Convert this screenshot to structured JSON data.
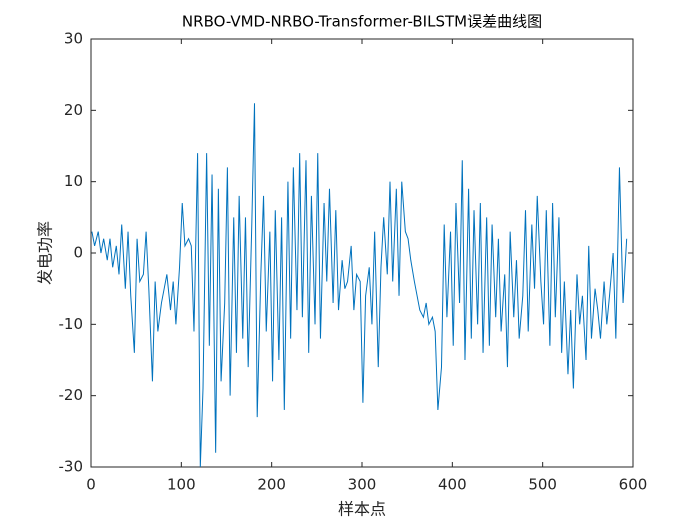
{
  "chart_data": {
    "type": "line",
    "title": "NRBO-VMD-NRBO-Transformer-BILSTM误差曲线图",
    "x_label": "样本点",
    "y_label": "发电功率",
    "color": "#0072bd",
    "x": [
      1,
      4,
      8,
      11,
      14,
      18,
      21,
      24,
      28,
      31,
      34,
      38,
      41,
      44,
      48,
      51,
      54,
      58,
      61,
      64,
      68,
      71,
      74,
      78,
      81,
      84,
      88,
      91,
      94,
      98,
      101,
      104,
      108,
      111,
      114,
      118,
      121,
      124,
      128,
      131,
      134,
      138,
      141,
      144,
      148,
      151,
      154,
      158,
      161,
      164,
      168,
      171,
      174,
      178,
      181,
      184,
      188,
      191,
      194,
      198,
      201,
      204,
      208,
      211,
      214,
      218,
      221,
      224,
      228,
      231,
      234,
      238,
      241,
      244,
      248,
      251,
      254,
      258,
      261,
      264,
      268,
      271,
      274,
      278,
      281,
      284,
      288,
      291,
      294,
      298,
      301,
      304,
      308,
      311,
      314,
      318,
      321,
      324,
      328,
      331,
      334,
      338,
      341,
      344,
      348,
      351,
      354,
      358,
      361,
      364,
      368,
      371,
      374,
      378,
      381,
      384,
      388,
      391,
      394,
      398,
      401,
      404,
      408,
      411,
      414,
      418,
      421,
      424,
      428,
      431,
      434,
      438,
      441,
      444,
      448,
      451,
      454,
      458,
      461,
      464,
      468,
      471,
      474,
      478,
      481,
      484,
      488,
      491,
      494,
      498,
      501,
      504,
      508,
      511,
      514,
      518,
      521,
      524,
      528,
      531,
      534,
      538,
      541,
      544,
      548,
      551,
      554,
      558,
      561,
      564,
      568,
      571,
      574,
      578,
      581,
      585,
      589,
      593
    ],
    "values": [
      3,
      1,
      3,
      0,
      2,
      -1,
      2,
      -2,
      1,
      -3,
      4,
      -5,
      3,
      -6,
      -14,
      2,
      -4,
      -3,
      3,
      -5,
      -18,
      -4,
      -11,
      -7,
      -5,
      -3,
      -8,
      -4,
      -10,
      -2,
      7,
      1,
      2,
      1,
      -11,
      14,
      -30,
      -19,
      14,
      -13,
      11,
      -28,
      9,
      -18,
      -7,
      12,
      -20,
      5,
      -14,
      8,
      -12,
      5,
      -16,
      4,
      21,
      -23,
      -3,
      8,
      -11,
      3,
      -18,
      6,
      -15,
      5,
      -22,
      10,
      -12,
      12,
      -8,
      14,
      -9,
      13,
      -14,
      8,
      -10,
      14,
      -12,
      7,
      -4,
      9,
      -7,
      6,
      -8,
      -1,
      -5,
      -4,
      1,
      -8,
      -3,
      -4,
      -21,
      -6,
      -2,
      -10,
      3,
      -16,
      -2,
      5,
      -3,
      10,
      -4,
      9,
      -6,
      10,
      3,
      2,
      -1,
      -4,
      -6,
      -8,
      -9,
      -7,
      -10,
      -9,
      -11,
      -22,
      -16,
      4,
      -9,
      3,
      -13,
      7,
      -7,
      13,
      -15,
      9,
      -12,
      6,
      -10,
      7,
      -14,
      5,
      -13,
      4,
      -9,
      2,
      -11,
      -3,
      -16,
      3,
      -9,
      -1,
      -12,
      -6,
      6,
      -11,
      4,
      -5,
      8,
      -4,
      -10,
      6,
      -13,
      7,
      -9,
      5,
      -14,
      -4,
      -17,
      -8,
      -19,
      -3,
      -10,
      -6,
      -15,
      1,
      -12,
      -5,
      -8,
      -12,
      -4,
      -10,
      -6,
      0,
      -12,
      12,
      -7,
      2
    ],
    "xlim": [
      0,
      600
    ],
    "xticks": [
      0,
      100,
      200,
      300,
      400,
      500,
      600
    ],
    "ylim": [
      -30,
      30
    ],
    "yticks": [
      -30,
      -20,
      -10,
      0,
      10,
      20,
      30
    ]
  }
}
